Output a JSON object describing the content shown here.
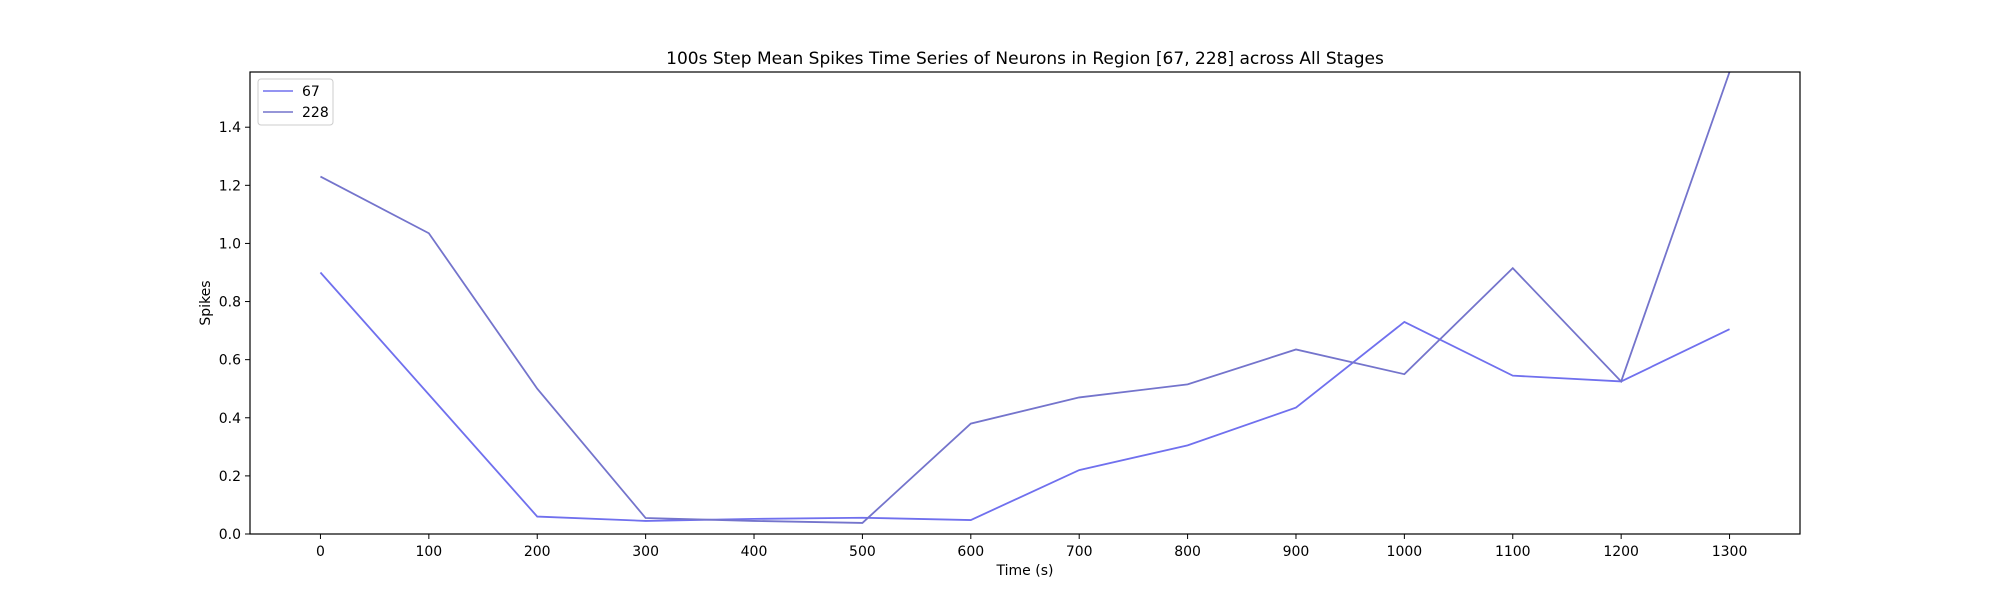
{
  "chart_data": {
    "type": "line",
    "title": "100s Step Mean Spikes Time Series of Neurons in Region [67, 228] across All Stages",
    "xlabel": "Time (s)",
    "ylabel": "Spikes",
    "x": [
      0,
      100,
      200,
      300,
      400,
      500,
      600,
      700,
      800,
      900,
      1000,
      1100,
      1200,
      1300
    ],
    "xticks": [
      "0",
      "100",
      "200",
      "300",
      "400",
      "500",
      "600",
      "700",
      "800",
      "900",
      "1000",
      "1100",
      "1200",
      "1300"
    ],
    "yticks": [
      "0.0",
      "0.2",
      "0.4",
      "0.6",
      "0.8",
      "1.0",
      "1.2",
      "1.4"
    ],
    "xlim": [
      -65,
      1365
    ],
    "ylim": [
      0,
      1.59
    ],
    "grid": false,
    "legend_position": "upper left",
    "series": [
      {
        "name": "67",
        "color": "#7070ee",
        "values": [
          0.9,
          0.48,
          0.06,
          0.045,
          0.052,
          0.056,
          0.048,
          0.22,
          0.305,
          0.435,
          0.73,
          0.545,
          0.525,
          0.705
        ]
      },
      {
        "name": "228",
        "color": "#7474cc",
        "values": [
          1.23,
          1.035,
          0.5,
          0.055,
          0.045,
          0.038,
          0.38,
          0.47,
          0.515,
          0.635,
          0.55,
          0.915,
          0.525,
          1.59
        ]
      }
    ]
  }
}
